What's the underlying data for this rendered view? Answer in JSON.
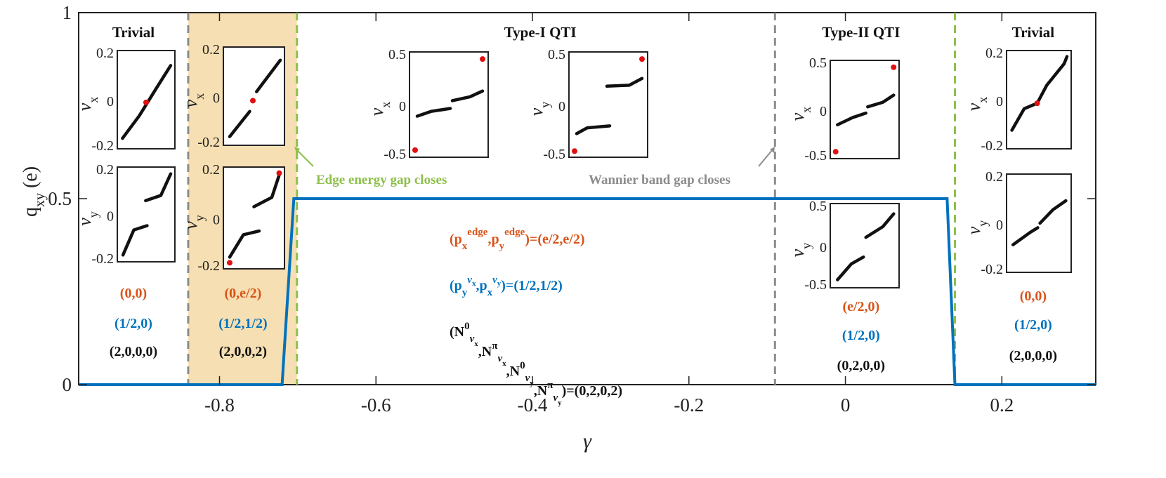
{
  "chart_data": {
    "type": "line",
    "xlabel": "γ",
    "ylabel": "q_xy (e)",
    "xlim": [
      -0.98,
      0.32
    ],
    "ylim": [
      0,
      1
    ],
    "x_ticks": [
      {
        "value": -0.8,
        "label": "-0.8"
      },
      {
        "value": -0.6,
        "label": "-0.6"
      },
      {
        "value": -0.4,
        "label": "-0.4"
      },
      {
        "value": -0.2,
        "label": "-0.2"
      },
      {
        "value": 0,
        "label": "0"
      },
      {
        "value": 0.2,
        "label": "0.2"
      }
    ],
    "y_ticks": [
      {
        "value": 0,
        "label": "0"
      },
      {
        "value": 0.5,
        "label": "0.5"
      },
      {
        "value": 1,
        "label": "1"
      }
    ],
    "series": [
      {
        "name": "q_xy",
        "color": "#0072bd",
        "x": [
          -0.98,
          -0.72,
          -0.705,
          0.13,
          0.14,
          0.32
        ],
        "y": [
          0,
          0,
          0.5,
          0.5,
          0,
          0
        ]
      }
    ],
    "shaded_region": {
      "x": [
        -0.84,
        -0.701
      ],
      "color": "#f6dfb2"
    },
    "boundaries": [
      {
        "x": -0.84,
        "color": "#8c8c8c"
      },
      {
        "x": -0.701,
        "color": "#8dc04a"
      },
      {
        "x": -0.09,
        "color": "#8c8c8c"
      },
      {
        "x": 0.14,
        "color": "#8dc04a"
      }
    ],
    "phase_labels": [
      {
        "text": "Trivial",
        "x": -0.91
      },
      {
        "text": "Type-I QTI",
        "x": -0.39
      },
      {
        "text": "Type-II QTI",
        "x": 0.02
      },
      {
        "text": "Trivial",
        "x": 0.24
      }
    ],
    "annotations": {
      "edge_gap": "Edge energy gap closes",
      "wannier_gap": "Wannier band gap closes",
      "edge_polarization": "(p_x^edge, p_y^edge)=(e/2,e/2)",
      "wannier_polarization": "(p_y^νx, p_x^νy)=(1/2,1/2)",
      "winding_numbers": "(N^0_νx, N^π_νx, N^0_νy, N^π_νy)=(0,2,0,2)"
    },
    "region_labels": [
      {
        "x": -0.91,
        "edge": "(0,0)",
        "wannier": "(1/2,0)",
        "n": "(2,0,0,0)"
      },
      {
        "x": -0.77,
        "edge": "(0,e/2)",
        "wannier": "(1/2,1/2)",
        "n": "(2,0,0,2)"
      },
      {
        "x": 0.02,
        "edge": "(e/2,0)",
        "wannier": "(1/2,0)",
        "n": "(0,2,0,0)"
      },
      {
        "x": 0.24,
        "edge": "(0,0)",
        "wannier": "(1/2,0)",
        "n": "(2,0,0,0)"
      }
    ],
    "insets": [
      {
        "id": "trivial-left-x",
        "var": "x",
        "ticks": [
          "0.2",
          "0",
          "-0.2"
        ],
        "segments": [
          [
            [
              0.02,
              0.07
            ],
            [
              0.36,
              0.32
            ],
            [
              0.7,
              0.62
            ],
            [
              1.0,
              0.88
            ]
          ]
        ],
        "red": [
          [
            0.5,
            0.47
          ]
        ]
      },
      {
        "id": "trivial-left-y",
        "var": "y",
        "ticks": [
          "0.2",
          "0",
          "-0.2"
        ],
        "segments": [
          [
            [
              0.03,
              0.03
            ],
            [
              0.25,
              0.32
            ],
            [
              0.52,
              0.37
            ]
          ],
          [
            [
              0.49,
              0.66
            ],
            [
              0.8,
              0.72
            ],
            [
              1.0,
              0.97
            ]
          ]
        ],
        "red": []
      },
      {
        "id": "shaded-x",
        "var": "x",
        "ticks": [
          "0.2",
          "0",
          "-0.2"
        ],
        "segments": [
          [
            [
              0.04,
              0.05
            ],
            [
              0.42,
              0.33
            ]
          ],
          [
            [
              0.55,
              0.55
            ],
            [
              1.0,
              0.9
            ]
          ]
        ],
        "red": [
          [
            0.48,
            0.45
          ]
        ]
      },
      {
        "id": "shaded-y",
        "var": "y",
        "ticks": [
          "0.2",
          "0",
          "-0.2"
        ],
        "segments": [
          [
            [
              0.04,
              0.08
            ],
            [
              0.3,
              0.32
            ],
            [
              0.6,
              0.36
            ]
          ],
          [
            [
              0.5,
              0.62
            ],
            [
              0.84,
              0.72
            ],
            [
              0.98,
              0.96
            ]
          ]
        ],
        "red": [
          [
            0.04,
            0.02
          ],
          [
            0.98,
            0.98
          ]
        ]
      },
      {
        "id": "type1-x",
        "var": "x",
        "ticks": [
          "0.5",
          "0",
          "-0.5"
        ],
        "segments": [
          [
            [
              0.05,
              0.38
            ],
            [
              0.25,
              0.43
            ],
            [
              0.52,
              0.46
            ]
          ],
          [
            [
              0.55,
              0.54
            ],
            [
              0.8,
              0.58
            ],
            [
              0.98,
              0.64
            ]
          ]
        ],
        "red": [
          [
            0.02,
            0.03
          ],
          [
            0.98,
            0.97
          ]
        ]
      },
      {
        "id": "type1-y",
        "var": "y",
        "ticks": [
          "0.5",
          "0",
          "-0.5"
        ],
        "segments": [
          [
            [
              0.05,
              0.2
            ],
            [
              0.2,
              0.26
            ],
            [
              0.52,
              0.28
            ]
          ],
          [
            [
              0.48,
              0.69
            ],
            [
              0.8,
              0.7
            ],
            [
              0.98,
              0.77
            ]
          ]
        ],
        "red": [
          [
            0.02,
            0.02
          ],
          [
            0.98,
            0.97
          ]
        ]
      },
      {
        "id": "type2-x",
        "var": "x",
        "ticks": [
          "0.5",
          "0",
          "-0.5"
        ],
        "segments": [
          [
            [
              0.05,
              0.33
            ],
            [
              0.3,
              0.41
            ],
            [
              0.52,
              0.46
            ]
          ],
          [
            [
              0.55,
              0.53
            ],
            [
              0.8,
              0.58
            ],
            [
              0.98,
              0.66
            ]
          ]
        ],
        "red": [
          [
            0.02,
            0.03
          ],
          [
            0.98,
            0.97
          ]
        ]
      },
      {
        "id": "type2-y",
        "var": "y",
        "ticks": [
          "0.5",
          "0",
          "-0.5"
        ],
        "segments": [
          [
            [
              0.05,
              0.05
            ],
            [
              0.28,
              0.26
            ],
            [
              0.48,
              0.35
            ]
          ],
          [
            [
              0.52,
              0.61
            ],
            [
              0.8,
              0.75
            ],
            [
              0.98,
              0.92
            ]
          ]
        ],
        "red": []
      },
      {
        "id": "trivial-right-x",
        "var": "x",
        "ticks": [
          "0.2",
          "0",
          "-0.2"
        ],
        "segments": [
          [
            [
              0.02,
              0.16
            ],
            [
              0.24,
              0.4
            ],
            [
              0.47,
              0.46
            ],
            [
              0.64,
              0.66
            ],
            [
              0.95,
              0.9
            ],
            [
              1.0,
              0.98
            ]
          ]
        ],
        "red": [
          [
            0.47,
            0.46
          ]
        ]
      },
      {
        "id": "trivial-right-y",
        "var": "y",
        "ticks": [
          "0.2",
          "0",
          "-0.2"
        ],
        "segments": [
          [
            [
              0.04,
              0.26
            ],
            [
              0.35,
              0.4
            ],
            [
              0.48,
              0.45
            ]
          ],
          [
            [
              0.52,
              0.5
            ],
            [
              0.75,
              0.65
            ],
            [
              0.98,
              0.75
            ]
          ]
        ],
        "red": []
      }
    ]
  }
}
